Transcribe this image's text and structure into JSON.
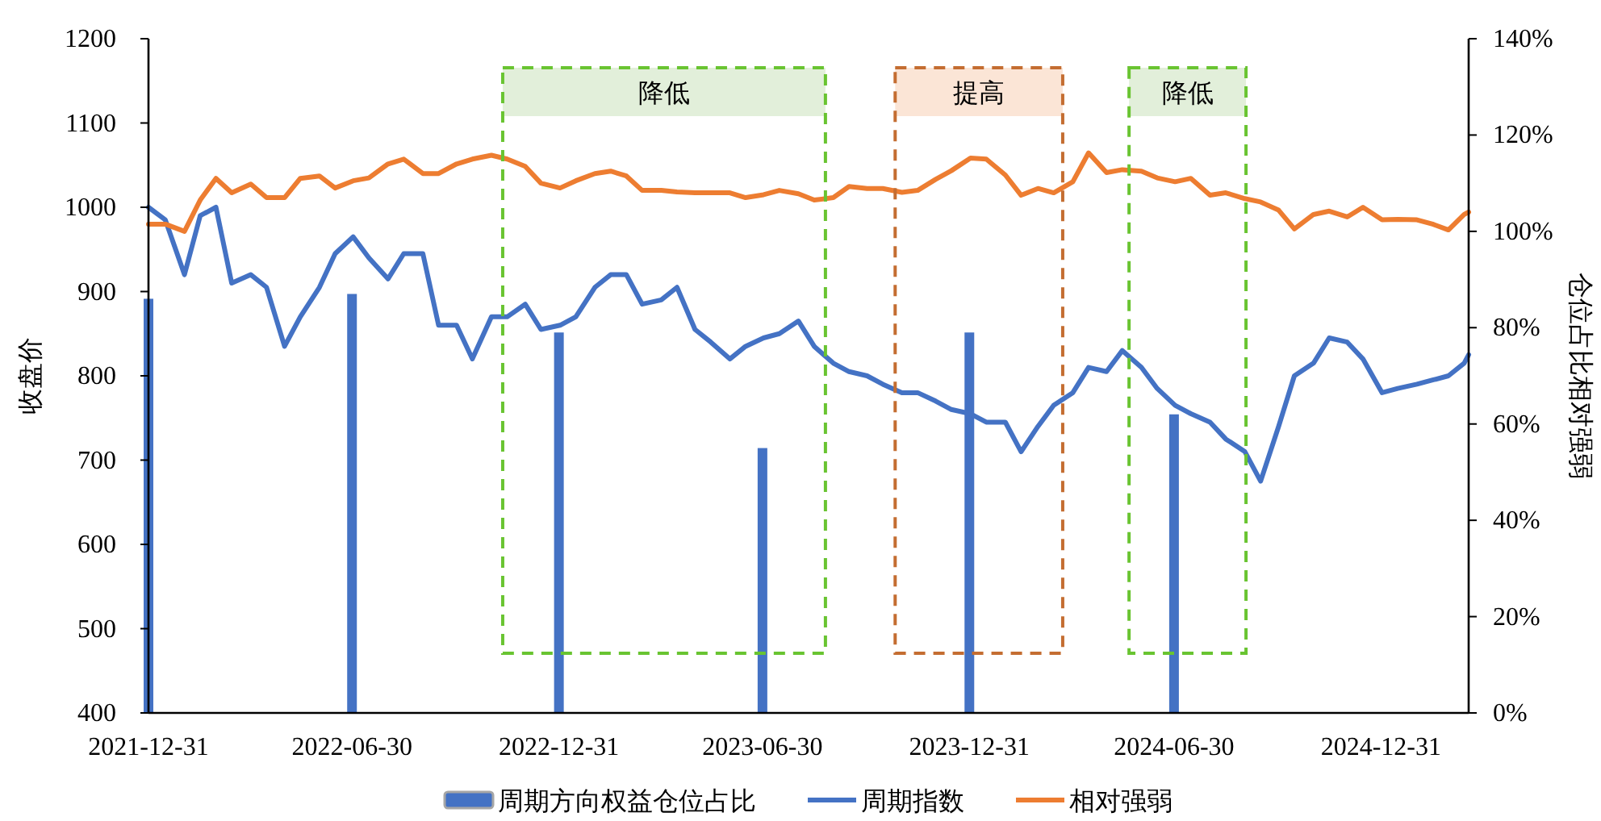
{
  "chart_data": {
    "type": "line",
    "ylabel": "收盘价",
    "y2label": "仓位占比相对强弱",
    "legend": "bottom",
    "xlim": [
      "2021-12-31",
      "2025-03-19"
    ],
    "xticks": [
      "2021-12-31",
      "2022-06-30",
      "2022-12-31",
      "2023-06-30",
      "2023-12-31",
      "2024-06-30",
      "2024-12-31"
    ],
    "ylim": [
      400,
      1200
    ],
    "yticks": [
      400,
      500,
      600,
      700,
      800,
      900,
      1000,
      1100,
      1200
    ],
    "y2lim": [
      0,
      140
    ],
    "y2ticks": [
      {
        "value": 0,
        "label": "0%"
      },
      {
        "value": 20,
        "label": "20%"
      },
      {
        "value": 40,
        "label": "40%"
      },
      {
        "value": 60,
        "label": "60%"
      },
      {
        "value": 80,
        "label": "80%"
      },
      {
        "value": 100,
        "label": "100%"
      },
      {
        "value": 120,
        "label": "120%"
      },
      {
        "value": 140,
        "label": "140%"
      }
    ],
    "bands": [
      {
        "axis": "x",
        "from": "2022-11-11",
        "to": "2023-08-25",
        "label": "降低",
        "color": "#e2efda"
      },
      {
        "axis": "x",
        "from": "2023-10-26",
        "to": "2024-03-23",
        "label": "提高",
        "color": "#fbe5d6"
      },
      {
        "axis": "x",
        "from": "2024-05-21",
        "to": "2024-09-02",
        "label": "降低",
        "color": "#e2efda"
      }
    ],
    "series": [
      {
        "name": "周期方向权益仓位占比",
        "type": "bar",
        "axis": "y2",
        "color": "#4472c4",
        "x": [
          "2021-12-31",
          "2022-06-30",
          "2022-12-31",
          "2023-06-30",
          "2023-12-31",
          "2024-06-30"
        ],
        "values": [
          86,
          87,
          79,
          55,
          79,
          62
        ]
      },
      {
        "name": "周期指数",
        "color": "#4472c4",
        "x": [
          "2021-12-31",
          "2022-01-15",
          "2022-02-01",
          "2022-02-15",
          "2022-03-01",
          "2022-03-15",
          "2022-04-01",
          "2022-04-15",
          "2022-05-01",
          "2022-05-15",
          "2022-06-01",
          "2022-06-15",
          "2022-07-01",
          "2022-07-15",
          "2022-08-01",
          "2022-08-15",
          "2022-09-01",
          "2022-09-15",
          "2022-10-01",
          "2022-10-15",
          "2022-11-01",
          "2022-11-15",
          "2022-12-01",
          "2022-12-15",
          "2023-01-01",
          "2023-01-15",
          "2023-02-01",
          "2023-02-15",
          "2023-03-01",
          "2023-03-15",
          "2023-04-01",
          "2023-04-15",
          "2023-05-01",
          "2023-05-15",
          "2023-06-01",
          "2023-06-15",
          "2023-07-01",
          "2023-07-15",
          "2023-08-01",
          "2023-08-15",
          "2023-09-01",
          "2023-09-15",
          "2023-10-01",
          "2023-10-15",
          "2023-11-01",
          "2023-11-15",
          "2023-12-01",
          "2023-12-15",
          "2024-01-01",
          "2024-01-15",
          "2024-02-01",
          "2024-02-15",
          "2024-03-01",
          "2024-03-15",
          "2024-04-01",
          "2024-04-15",
          "2024-05-01",
          "2024-05-15",
          "2024-06-01",
          "2024-06-15",
          "2024-07-01",
          "2024-07-15",
          "2024-08-01",
          "2024-08-15",
          "2024-09-01",
          "2024-09-15",
          "2024-10-01",
          "2024-10-15",
          "2024-11-01",
          "2024-11-15",
          "2024-12-01",
          "2024-12-15",
          "2025-01-01",
          "2025-01-15",
          "2025-02-01",
          "2025-02-15",
          "2025-03-01",
          "2025-03-15",
          "2025-03-19"
        ],
        "values": [
          1000,
          985,
          920,
          990,
          1000,
          910,
          920,
          905,
          835,
          870,
          905,
          945,
          965,
          940,
          915,
          945,
          945,
          860,
          860,
          820,
          870,
          870,
          885,
          855,
          860,
          870,
          905,
          920,
          920,
          885,
          890,
          905,
          855,
          840,
          820,
          835,
          845,
          850,
          865,
          835,
          815,
          805,
          800,
          790,
          780,
          780,
          770,
          760,
          755,
          745,
          745,
          710,
          740,
          765,
          780,
          810,
          805,
          830,
          810,
          785,
          765,
          755,
          745,
          725,
          710,
          675,
          740,
          800,
          815,
          845,
          840,
          820,
          780,
          785,
          790,
          795,
          800,
          815,
          825
        ]
      },
      {
        "name": "相对强弱",
        "axis": "y2",
        "color": "#ed7d31",
        "x": [
          "2021-12-31",
          "2022-01-15",
          "2022-02-01",
          "2022-02-15",
          "2022-03-01",
          "2022-03-15",
          "2022-04-01",
          "2022-04-15",
          "2022-05-01",
          "2022-05-15",
          "2022-06-01",
          "2022-06-15",
          "2022-07-01",
          "2022-07-15",
          "2022-08-01",
          "2022-08-15",
          "2022-09-01",
          "2022-09-15",
          "2022-10-01",
          "2022-10-15",
          "2022-11-01",
          "2022-11-15",
          "2022-12-01",
          "2022-12-15",
          "2023-01-01",
          "2023-01-15",
          "2023-02-01",
          "2023-02-15",
          "2023-03-01",
          "2023-03-15",
          "2023-04-01",
          "2023-04-15",
          "2023-05-01",
          "2023-05-15",
          "2023-06-01",
          "2023-06-15",
          "2023-07-01",
          "2023-07-15",
          "2023-08-01",
          "2023-08-15",
          "2023-09-01",
          "2023-09-15",
          "2023-10-01",
          "2023-10-15",
          "2023-11-01",
          "2023-11-15",
          "2023-12-01",
          "2023-12-15",
          "2024-01-01",
          "2024-01-15",
          "2024-02-01",
          "2024-02-15",
          "2024-03-01",
          "2024-03-15",
          "2024-04-01",
          "2024-04-15",
          "2024-05-01",
          "2024-05-15",
          "2024-06-01",
          "2024-06-15",
          "2024-07-01",
          "2024-07-15",
          "2024-08-01",
          "2024-08-15",
          "2024-09-01",
          "2024-09-15",
          "2024-10-01",
          "2024-10-15",
          "2024-11-01",
          "2024-11-15",
          "2024-12-01",
          "2024-12-15",
          "2025-01-01",
          "2025-01-15",
          "2025-02-01",
          "2025-02-15",
          "2025-03-01",
          "2025-03-15",
          "2025-03-19"
        ],
        "values": [
          101.5,
          101.5,
          100,
          106.5,
          111,
          108,
          109.8,
          107,
          107,
          111,
          111.5,
          109,
          110.5,
          111.1,
          114,
          115,
          112,
          112,
          114,
          115,
          115.8,
          115,
          113.5,
          110,
          109,
          110.5,
          112,
          112.5,
          111.5,
          108.5,
          108.5,
          108.2,
          108,
          108,
          108,
          107,
          107.6,
          108.5,
          107.8,
          106.5,
          107,
          109.3,
          108.9,
          108.9,
          108.1,
          108.5,
          110.8,
          112.6,
          115.2,
          115,
          111.7,
          107.5,
          108.9,
          108,
          110.3,
          116.3,
          112.2,
          112.8,
          112.5,
          111.1,
          110.3,
          111,
          107.5,
          108,
          106.8,
          106.1,
          104.4,
          100.5,
          103.5,
          104.2,
          103,
          105,
          102.4,
          102.5,
          102.4,
          101.5,
          100.3,
          103.5,
          104
        ]
      }
    ]
  }
}
